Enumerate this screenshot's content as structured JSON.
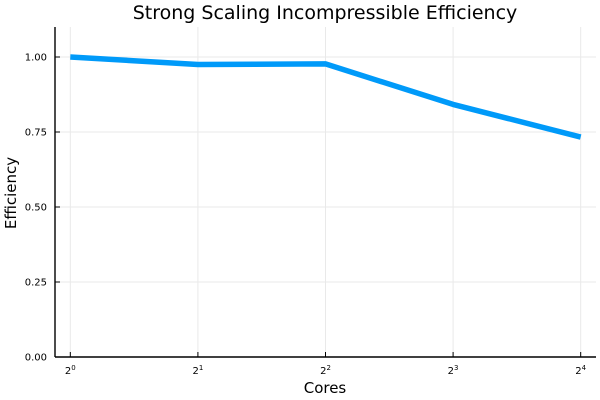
{
  "chart_data": {
    "type": "line",
    "title": "Strong Scaling Incompressible Efficiency",
    "xlabel": "Cores",
    "ylabel": "Efficiency",
    "x_scale": "log2",
    "x": [
      1,
      2,
      4,
      8,
      16
    ],
    "x_tick_labels": [
      {
        "base": "2",
        "exp": "0"
      },
      {
        "base": "2",
        "exp": "1"
      },
      {
        "base": "2",
        "exp": "2"
      },
      {
        "base": "2",
        "exp": "3"
      },
      {
        "base": "2",
        "exp": "4"
      }
    ],
    "ylim": [
      0,
      1.1
    ],
    "y_ticks": [
      0,
      0.25,
      0.5,
      0.75,
      1.0
    ],
    "y_tick_labels": [
      "0.00",
      "0.25",
      "0.50",
      "0.75",
      "1.00"
    ],
    "series": [
      {
        "values": [
          1.0,
          0.975,
          0.977,
          0.842,
          0.733
        ],
        "color": "#009af9"
      }
    ],
    "grid": true,
    "legend": "none"
  }
}
